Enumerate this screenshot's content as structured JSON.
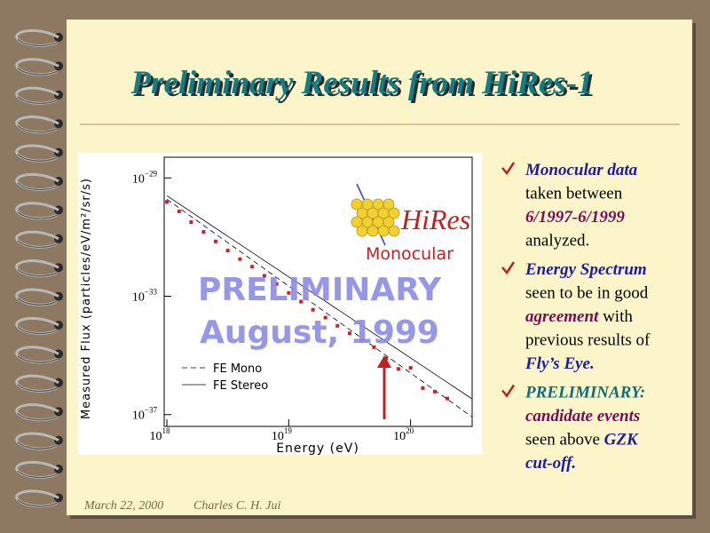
{
  "slide": {
    "title": "Preliminary Results from HiRes-1",
    "bullets": [
      {
        "lines": [
          [
            {
              "text": "Monocular data",
              "color": "#1c1c9c"
            }
          ],
          [
            {
              "text": "taken between",
              "color": "#000000"
            }
          ],
          [
            {
              "text": "6/1997-6/1999",
              "color": "#7a0a5a"
            }
          ],
          [
            {
              "text": "analyzed.",
              "color": "#000000"
            }
          ]
        ]
      },
      {
        "lines": [
          [
            {
              "text": "Energy Spectrum",
              "color": "#1c1c9c"
            }
          ],
          [
            {
              "text": "seen to be in good",
              "color": "#000000"
            }
          ],
          [
            {
              "text": "agreement",
              "color": "#7a0a5a"
            },
            {
              "text": " with",
              "color": "#000000"
            }
          ],
          [
            {
              "text": "previous results of",
              "color": "#000000"
            }
          ],
          [
            {
              "text": "Fly’s Eye.",
              "color": "#1c1c9c"
            }
          ]
        ]
      },
      {
        "lines": [
          [
            {
              "text": "PRELIMINARY:",
              "color": "#0a6e82"
            }
          ],
          [
            {
              "text": "candidate events",
              "color": "#7a0a5a"
            }
          ],
          [
            {
              "text": "seen above ",
              "color": "#000000"
            },
            {
              "text": "GZK",
              "color": "#1c1c9c"
            }
          ],
          [
            {
              "text": "cut-off.",
              "color": "#1c1c9c"
            }
          ]
        ]
      }
    ],
    "footer": {
      "date": "March 22, 2000",
      "author": "Charles C. H. Jui"
    }
  },
  "chart_data": {
    "type": "scatter",
    "x_label": "Energy (eV)",
    "y_label": "Measured Flux (particles/eV/m²/sr/s)",
    "log_x": true,
    "log_y": true,
    "xlim": [
      9.5e+17,
      3.2e+20
    ],
    "ylim": [
      4e-38,
      5e-29
    ],
    "xticks": [
      {
        "value": 1e+18,
        "label": "10",
        "exponent": "18"
      },
      {
        "value": 1e+19,
        "label": "10",
        "exponent": "19"
      },
      {
        "value": 1e+20,
        "label": "10",
        "exponent": "20"
      }
    ],
    "yticks": [
      {
        "value": 1e-29,
        "label": "10",
        "exponent": "−29"
      },
      {
        "value": 1e-33,
        "label": "10",
        "exponent": "−33"
      },
      {
        "value": 1e-37,
        "label": "10",
        "exponent": "−37"
      }
    ],
    "color": "#cc2222",
    "x": [
      1e+18,
      1.26e+18,
      1.58e+18,
      2e+18,
      2.51e+18,
      3.16e+18,
      3.98e+18,
      5.01e+18,
      6.31e+18,
      7.94e+18,
      1e+19,
      1.26e+19,
      1.58e+19,
      2e+19,
      2.51e+19,
      3.16e+19,
      3.98e+19,
      5.01e+19,
      6.31e+19,
      7.94e+19,
      1e+20,
      1.26e+20,
      1.58e+20,
      2e+20
    ],
    "values": [
      1.55e-30,
      7.4e-31,
      3.2e-31,
      1.5e-31,
      7.1e-32,
      3.5e-32,
      1.8e-32,
      1e-32,
      4.9e-33,
      2.6e-33,
      1.3e-33,
      6.6e-34,
      3.5e-34,
      1.9e-34,
      1e-34,
      5.6e-35,
      3.2e-35,
      1.9e-35,
      8.1e-36,
      3.5e-36,
      3.8e-36,
      7.9e-37,
      6e-37,
      3.5e-37
    ],
    "lines": [
      {
        "name": "FE Mono",
        "dashed": true,
        "x": [
          1e+18,
          3.16e+20
        ],
        "values": [
          1.9e-30,
          8.7e-38
        ]
      },
      {
        "name": "FE Stereo",
        "dashed": false,
        "x": [
          1e+18,
          3.16e+20
        ],
        "values": [
          2.5e-30,
          3.5e-37
        ]
      }
    ],
    "annotations": [
      "PRELIMINARY",
      "August, 1999"
    ],
    "logo": {
      "name": "HiRes",
      "subtitle": "Monocular"
    }
  }
}
